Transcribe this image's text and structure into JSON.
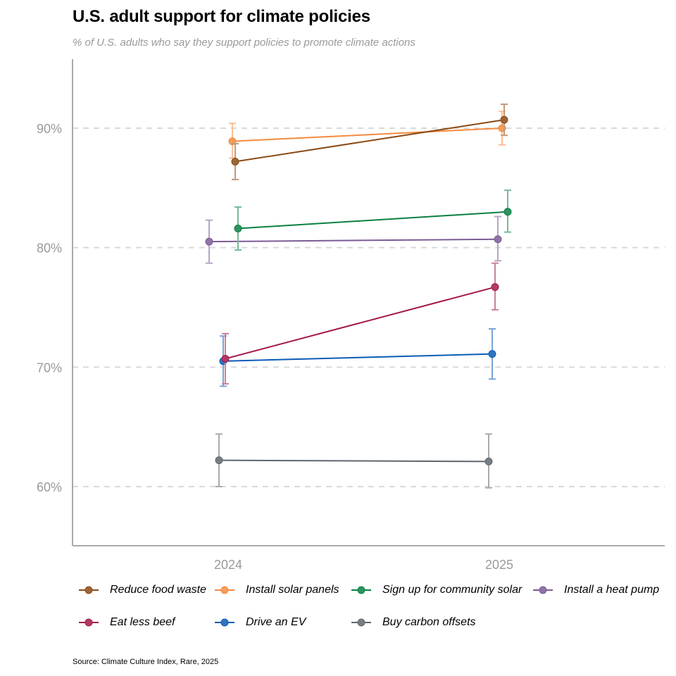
{
  "header": {
    "title": "U.S. adult support for climate policies",
    "subtitle": "% of U.S. adults who say they support policies to promote climate actions"
  },
  "source": "Source: Climate Culture Index, Rare, 2025",
  "chart_data": {
    "type": "line",
    "title": "U.S. adult support for climate policies",
    "subtitle": "% of U.S. adults who say they support policies to promote climate actions",
    "xlabel": "",
    "ylabel": "",
    "categories": [
      "2024",
      "2025"
    ],
    "ylim": [
      55,
      95
    ],
    "yticks": [
      60,
      70,
      80,
      90
    ],
    "ytick_labels": [
      "60%",
      "70%",
      "80%",
      "90%"
    ],
    "grid": "horizontal dashed",
    "legend_position": "bottom",
    "error_bars": true,
    "series": [
      {
        "name": "Reduce food waste",
        "color": "#8B4A14",
        "values": [
          87.2,
          90.7
        ],
        "lower": [
          85.7,
          89.4
        ],
        "upper": [
          88.7,
          92.0
        ]
      },
      {
        "name": "Install solar panels",
        "color": "#F58A3F",
        "values": [
          88.9,
          90.0
        ],
        "lower": [
          87.5,
          88.6
        ],
        "upper": [
          90.4,
          91.4
        ]
      },
      {
        "name": "Sign up for community solar",
        "color": "#0A8042",
        "values": [
          81.6,
          83.0
        ],
        "lower": [
          79.8,
          81.3
        ],
        "upper": [
          83.4,
          84.8
        ]
      },
      {
        "name": "Install a heat pump",
        "color": "#7B5B95",
        "values": [
          80.5,
          80.7
        ],
        "lower": [
          78.7,
          78.9
        ],
        "upper": [
          82.3,
          82.6
        ]
      },
      {
        "name": "Eat less beef",
        "color": "#A3174A",
        "values": [
          70.7,
          76.7
        ],
        "lower": [
          68.6,
          74.8
        ],
        "upper": [
          72.8,
          78.7
        ]
      },
      {
        "name": "Drive an EV",
        "color": "#0B5CB5",
        "values": [
          70.5,
          71.1
        ],
        "lower": [
          68.4,
          69.0
        ],
        "upper": [
          72.6,
          73.2
        ]
      },
      {
        "name": "Buy carbon offsets",
        "color": "#5E666E",
        "values": [
          62.2,
          62.1
        ],
        "lower": [
          60.0,
          59.9
        ],
        "upper": [
          64.4,
          64.4
        ]
      }
    ]
  }
}
